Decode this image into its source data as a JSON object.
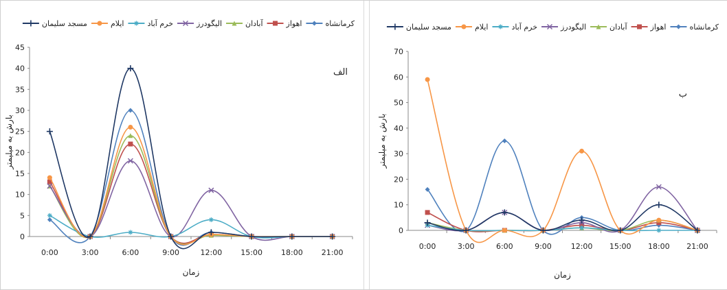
{
  "chart_data": [
    {
      "type": "line",
      "panel_label": "الف",
      "xlabel": "زمان",
      "ylabel": "بارش به میلیمتر",
      "categories": [
        "0:00",
        "3:00",
        "6:00",
        "9:00",
        "12:00",
        "15:00",
        "18:00",
        "21:00"
      ],
      "ylim": [
        0,
        45
      ],
      "yticks": [
        0,
        5,
        10,
        15,
        20,
        25,
        30,
        35,
        40,
        45
      ],
      "grid": false,
      "legend_position": "top",
      "series": [
        {
          "name": "کرمانشاه",
          "color": "#4f81bd",
          "marker": "diamond",
          "values": [
            4,
            0,
            30,
            0,
            1,
            0,
            0,
            0
          ]
        },
        {
          "name": "اهواز",
          "color": "#c0504d",
          "marker": "square",
          "values": [
            13,
            0,
            22,
            0,
            0.5,
            0,
            0,
            0
          ]
        },
        {
          "name": "آبادان",
          "color": "#9bbb59",
          "marker": "triangle",
          "values": [
            12,
            0,
            24,
            0,
            0.3,
            0,
            0,
            0
          ]
        },
        {
          "name": "الیگودرز",
          "color": "#8064a2",
          "marker": "x",
          "values": [
            12,
            0,
            18,
            0,
            11,
            0,
            0,
            0
          ]
        },
        {
          "name": "خرم آباد",
          "color": "#4bacc6",
          "marker": "star",
          "values": [
            5,
            0,
            1,
            0,
            4,
            0,
            0,
            0
          ]
        },
        {
          "name": "ایلام",
          "color": "#f79646",
          "marker": "circle",
          "values": [
            14,
            0,
            26,
            0,
            0.5,
            0,
            0,
            0
          ]
        },
        {
          "name": "مسجد سلیمان",
          "color": "#1f3864",
          "marker": "plus",
          "values": [
            25,
            0,
            40,
            0,
            1,
            0,
            0,
            0
          ]
        }
      ]
    },
    {
      "type": "line",
      "panel_label": "ب",
      "xlabel": "زمان",
      "ylabel": "بارش به میلیمتر",
      "categories": [
        "0:00",
        "3:00",
        "6:00",
        "9:00",
        "12:00",
        "15:00",
        "18:00",
        "21:00"
      ],
      "ylim": [
        0,
        70
      ],
      "yticks": [
        0,
        10,
        20,
        30,
        40,
        50,
        60,
        70
      ],
      "grid": false,
      "legend_position": "top",
      "series": [
        {
          "name": "کرمانشاه",
          "color": "#4f81bd",
          "marker": "diamond",
          "values": [
            16,
            0,
            35,
            0,
            5,
            0,
            2,
            0
          ]
        },
        {
          "name": "اهواز",
          "color": "#c0504d",
          "marker": "square",
          "values": [
            7,
            0,
            0,
            0,
            2,
            0,
            3,
            0
          ]
        },
        {
          "name": "آبادان",
          "color": "#9bbb59",
          "marker": "triangle",
          "values": [
            3,
            0,
            0,
            0,
            1,
            0,
            4,
            0
          ]
        },
        {
          "name": "الیگودرز",
          "color": "#8064a2",
          "marker": "x",
          "values": [
            2,
            0,
            7,
            0,
            3,
            0,
            17,
            0
          ]
        },
        {
          "name": "خرم آباد",
          "color": "#4bacc6",
          "marker": "star",
          "values": [
            2,
            0,
            0,
            0,
            1,
            0,
            0,
            0
          ]
        },
        {
          "name": "ایلام",
          "color": "#f79646",
          "marker": "circle",
          "values": [
            59,
            0,
            0,
            0,
            31,
            0,
            4,
            0
          ]
        },
        {
          "name": "مسجد سلیمان",
          "color": "#1f3864",
          "marker": "plus",
          "values": [
            3,
            0,
            7,
            0,
            4,
            0,
            10,
            0
          ]
        }
      ]
    }
  ]
}
